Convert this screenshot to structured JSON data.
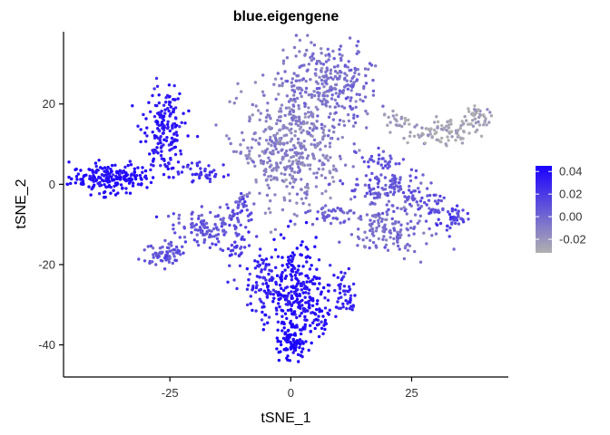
{
  "chart_data": {
    "type": "scatter",
    "title": "blue.eigengene",
    "xlabel": "tSNE_1",
    "ylabel": "tSNE_2",
    "xlim": [
      -47,
      45
    ],
    "ylim": [
      -48,
      38
    ],
    "x_ticks": [
      -25,
      0,
      25
    ],
    "x_tick_labels": [
      "-25",
      "0",
      "25"
    ],
    "y_ticks": [
      -40,
      -20,
      0,
      20
    ],
    "y_tick_labels": [
      "-40",
      "-20",
      "0",
      "20"
    ],
    "grid": false,
    "color_scale": {
      "low_color": "#b0b0b0",
      "high_color": "#1a00ff",
      "min": -0.032,
      "max": 0.045,
      "breaks": [
        -0.02,
        0.0,
        0.02,
        0.04
      ],
      "break_labels": [
        "-0.02",
        "0.00",
        "0.02",
        "0.04"
      ],
      "legend_position": "right"
    },
    "clusters": [
      {
        "cx": -37,
        "cy": 1.5,
        "sx": 4.2,
        "sy": 1.8,
        "value": 0.04,
        "n": 200
      },
      {
        "cx": -26.5,
        "cy": 14,
        "sx": 2.2,
        "sy": 5.5,
        "value": 0.035,
        "n": 180
      },
      {
        "cx": -18,
        "cy": 2.5,
        "sx": 2.5,
        "sy": 1.6,
        "value": 0.022,
        "n": 40
      },
      {
        "cx": -26,
        "cy": -17,
        "sx": 2.2,
        "sy": 1.4,
        "value": 0.008,
        "n": 70
      },
      {
        "cx": -17.5,
        "cy": -11,
        "sx": 3.5,
        "sy": 2.3,
        "value": 0.006,
        "n": 110
      },
      {
        "cx": -10.5,
        "cy": -6,
        "sx": 1.4,
        "sy": 2.2,
        "value": 0.012,
        "n": 40
      },
      {
        "cx": -11,
        "cy": -16,
        "sx": 1.5,
        "sy": 2.5,
        "value": 0.018,
        "n": 30
      },
      {
        "cx": -5.5,
        "cy": -25,
        "sx": 2.0,
        "sy": 4.0,
        "value": 0.03,
        "n": 80
      },
      {
        "cx": 1,
        "cy": -27,
        "sx": 2.6,
        "sy": 6.0,
        "value": 0.038,
        "n": 250
      },
      {
        "cx": 0,
        "cy": -39,
        "sx": 1.5,
        "sy": 2.0,
        "value": 0.044,
        "n": 90
      },
      {
        "cx": 5.5,
        "cy": -33,
        "sx": 1.6,
        "sy": 2.5,
        "value": 0.04,
        "n": 40
      },
      {
        "cx": 11,
        "cy": -27,
        "sx": 1.5,
        "sy": 3.5,
        "value": 0.03,
        "n": 50
      },
      {
        "cx": 0,
        "cy": 9,
        "sx": 5.2,
        "sy": 7.5,
        "value": -0.012,
        "n": 450
      },
      {
        "cx": 5,
        "cy": 26,
        "sx": 3.5,
        "sy": 4.5,
        "value": -0.006,
        "n": 150
      },
      {
        "cx": 12,
        "cy": 25,
        "sx": 3.2,
        "sy": 5.5,
        "value": -0.002,
        "n": 120
      },
      {
        "cx": 8,
        "cy": -8,
        "sx": 2.5,
        "sy": 1.5,
        "value": 0.002,
        "n": 40
      },
      {
        "cx": 21,
        "cy": -11,
        "sx": 4.0,
        "sy": 3.0,
        "value": -0.004,
        "n": 140
      },
      {
        "cx": 20,
        "cy": -1,
        "sx": 4.0,
        "sy": 2.6,
        "value": 0.006,
        "n": 120
      },
      {
        "cx": 29,
        "cy": -5,
        "sx": 2.0,
        "sy": 2.2,
        "value": 0.01,
        "n": 40
      },
      {
        "cx": 33.5,
        "cy": -8.5,
        "sx": 1.6,
        "sy": 1.6,
        "value": 0.016,
        "n": 40
      },
      {
        "cx": 18,
        "cy": 6,
        "sx": 2.0,
        "sy": 1.6,
        "value": 0.008,
        "n": 30
      },
      {
        "cx": 31,
        "cy": 13,
        "sx": 3.5,
        "sy": 1.5,
        "value": -0.028,
        "n": 90
      },
      {
        "cx": 39,
        "cy": 17,
        "sx": 1.3,
        "sy": 1.6,
        "value": -0.026,
        "n": 40
      },
      {
        "cx": 22,
        "cy": 16,
        "sx": 1.6,
        "sy": 1.2,
        "value": -0.022,
        "n": 20
      }
    ]
  }
}
